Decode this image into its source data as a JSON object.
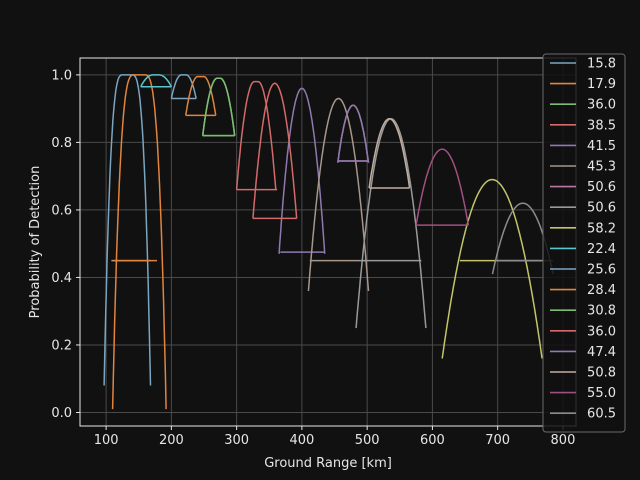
{
  "chart_data": {
    "type": "line",
    "title": "",
    "xlabel": "Ground Range [km]",
    "ylabel": "Probability of Detection",
    "xlim": [
      60,
      820
    ],
    "ylim": [
      -0.04,
      1.05
    ],
    "xticks": [
      100,
      200,
      300,
      400,
      500,
      600,
      700,
      800
    ],
    "yticks": [
      0.0,
      0.2,
      0.4,
      0.6,
      0.8,
      1.0
    ],
    "grid": true,
    "legend_position": "right",
    "series": [
      {
        "name": "15.8",
        "color": "#7aa6c2",
        "xmin": 97,
        "xmax": 168,
        "peak": 1.0,
        "floor": 0.08,
        "plateau": 0.2,
        "exp": 3.0,
        "baseline": 0.45,
        "bx1": 108,
        "bx2": 168
      },
      {
        "name": "17.9",
        "color": "#e0853f",
        "xmin": 110,
        "xmax": 192,
        "peak": 1.0,
        "floor": 0.01,
        "plateau": 0.2,
        "exp": 3.0,
        "baseline": 0.45,
        "bx1": 110,
        "bx2": 178
      },
      {
        "name": "36.0",
        "color": "#7dbd73",
        "xmin": 248,
        "xmax": 297,
        "peak": 0.99,
        "floor": 0.82,
        "plateau": 0.1,
        "exp": 2.0,
        "baseline": 0.82,
        "bx1": 248,
        "bx2": 297
      },
      {
        "name": "38.5",
        "color": "#d46a6a",
        "xmin": 300,
        "xmax": 360,
        "peak": 0.98,
        "floor": 0.66,
        "plateau": 0.1,
        "exp": 2.0,
        "baseline": 0.66,
        "bx1": 300,
        "bx2": 362
      },
      {
        "name": "41.5",
        "color": "#9179b0",
        "xmin": 365,
        "xmax": 435,
        "peak": 0.96,
        "floor": 0.47,
        "plateau": 0.0,
        "exp": 2.0,
        "baseline": 0.475,
        "bx1": 367,
        "bx2": 435
      },
      {
        "name": "45.3",
        "color": "#a8968a",
        "xmin": 410,
        "xmax": 502,
        "peak": 0.93,
        "floor": 0.36,
        "plateau": 0.0,
        "exp": 2.0,
        "baseline": 0.45,
        "bx1": 412,
        "bx2": 497
      },
      {
        "name": "50.6",
        "color": "#b87aa0",
        "xmin": 455,
        "xmax": 502,
        "peak": 0.91,
        "floor": 0.74,
        "plateau": 0.0,
        "exp": 2.0,
        "baseline": 0.745,
        "bx1": 455,
        "bx2": 502
      },
      {
        "name": "50.6",
        "color": "#9a9a9a",
        "xmin": 483,
        "xmax": 590,
        "peak": 0.87,
        "floor": 0.25,
        "plateau": 0.0,
        "exp": 2.0,
        "baseline": 0.45,
        "bx1": 493,
        "bx2": 583
      },
      {
        "name": "58.2",
        "color": "#c4c46a",
        "xmin": 615,
        "xmax": 768,
        "peak": 0.69,
        "floor": 0.16,
        "plateau": 0.0,
        "exp": 2.0,
        "baseline": 0.45,
        "bx1": 642,
        "bx2": 768
      },
      {
        "name": "22.4",
        "color": "#5cc4cc",
        "xmin": 153,
        "xmax": 200,
        "peak": 1.0,
        "floor": 0.965,
        "plateau": 0.2,
        "exp": 2.0,
        "baseline": 0.965,
        "bx1": 153,
        "bx2": 200
      },
      {
        "name": "25.6",
        "color": "#7aa6c2",
        "xmin": 200,
        "xmax": 238,
        "peak": 1.0,
        "floor": 0.93,
        "plateau": 0.2,
        "exp": 2.0,
        "baseline": 0.93,
        "bx1": 200,
        "bx2": 238
      },
      {
        "name": "28.4",
        "color": "#e0853f",
        "xmin": 222,
        "xmax": 268,
        "peak": 0.995,
        "floor": 0.88,
        "plateau": 0.2,
        "exp": 2.0,
        "baseline": 0.88,
        "bx1": 222,
        "bx2": 268
      },
      {
        "name": "30.8",
        "color": "#7dbd73",
        "xmin": 248,
        "xmax": 297,
        "peak": 0.99,
        "floor": 0.82,
        "plateau": 0.1,
        "exp": 2.0,
        "baseline": 0.82,
        "bx1": 248,
        "bx2": 297
      },
      {
        "name": "36.0",
        "color": "#d46a6a",
        "xmin": 325,
        "xmax": 392,
        "peak": 0.975,
        "floor": 0.575,
        "plateau": 0.0,
        "exp": 2.0,
        "baseline": 0.575,
        "bx1": 325,
        "bx2": 392
      },
      {
        "name": "47.4",
        "color": "#9179b0",
        "xmin": 455,
        "xmax": 502,
        "peak": 0.91,
        "floor": 0.74,
        "plateau": 0.0,
        "exp": 2.0,
        "baseline": 0.745,
        "bx1": 455,
        "bx2": 502
      },
      {
        "name": "50.8",
        "color": "#c4ada0",
        "xmin": 503,
        "xmax": 565,
        "peak": 0.87,
        "floor": 0.665,
        "plateau": 0.0,
        "exp": 2.0,
        "baseline": 0.665,
        "bx1": 503,
        "bx2": 565
      },
      {
        "name": "55.0",
        "color": "#a05080",
        "xmin": 575,
        "xmax": 655,
        "peak": 0.78,
        "floor": 0.555,
        "plateau": 0.0,
        "exp": 2.0,
        "baseline": 0.555,
        "bx1": 575,
        "bx2": 655
      },
      {
        "name": "60.5",
        "color": "#8c8c8c",
        "xmin": 692,
        "xmax": 785,
        "peak": 0.62,
        "floor": 0.41,
        "plateau": 0.0,
        "exp": 2.0,
        "baseline": 0.45,
        "bx1": 698,
        "bx2": 785
      }
    ]
  }
}
